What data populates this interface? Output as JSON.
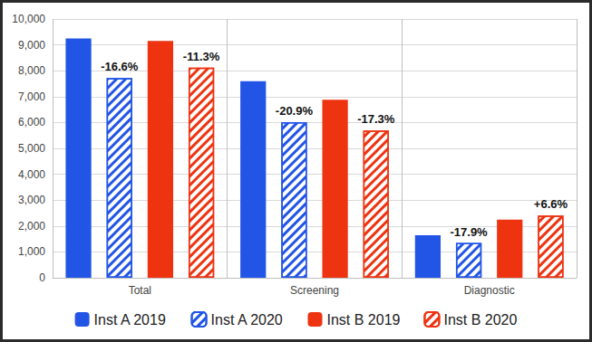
{
  "chart_data": {
    "type": "bar",
    "categories": [
      "Total",
      "Screening",
      "Diagnostic"
    ],
    "series": [
      {
        "name": "Inst A 2019",
        "color": "#2255e6",
        "values": [
          9250,
          7600,
          1640
        ]
      },
      {
        "name": "Inst A 2020",
        "color": "#2255e6",
        "values": [
          7720,
          6010,
          1345
        ],
        "annotations": [
          "-16.6%",
          "-20.9%",
          "-17.9%"
        ]
      },
      {
        "name": "Inst B 2019",
        "color": "#ee3311",
        "values": [
          9150,
          6880,
          2250
        ]
      },
      {
        "name": "Inst B 2020",
        "color": "#ee3311",
        "values": [
          8120,
          5690,
          2400
        ],
        "annotations": [
          "-11.3%",
          "-17.3%",
          "+6.6%"
        ]
      }
    ],
    "ylim": [
      0,
      10000
    ],
    "yticks": [
      0,
      1000,
      2000,
      3000,
      4000,
      5000,
      6000,
      7000,
      8000,
      9000,
      10000
    ],
    "grid": true,
    "legend": "bottom"
  }
}
